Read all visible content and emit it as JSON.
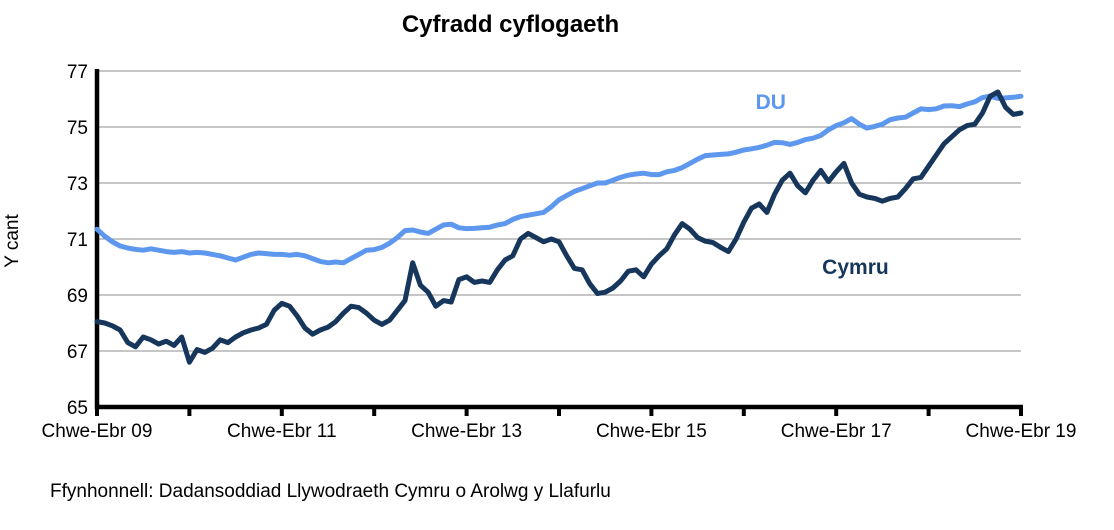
{
  "page": {
    "title": "Cyfradd cyflogaeth",
    "source_note": "Ffynhonnell: Dadansoddiad Llywodraeth Cymru o Arolwg y Llafurlu"
  },
  "chart_data": {
    "type": "line",
    "title": "Cyfradd cyflogaeth",
    "ylabel": "Y cant",
    "ylim": [
      65,
      77
    ],
    "yticks": [
      65,
      67,
      69,
      71,
      73,
      75,
      77
    ],
    "grid": "horizontal gridlines at yticks",
    "grid_color": "#8C8C8C",
    "axis_color": "#000000",
    "x_description": "Rolling 3-month labour force periods, monthly steps; month index 0 = Chwe-Ebr 09 (Feb-Apr 2009), month index 120 = Chwe-Ebr 19 (Feb-Apr 2019)",
    "x_months_range": [
      0,
      120
    ],
    "minor_tick_every_months": 12,
    "xtick_labels": [
      {
        "month": 0,
        "label": "Chwe-Ebr 09"
      },
      {
        "month": 24,
        "label": "Chwe-Ebr 11"
      },
      {
        "month": 48,
        "label": "Chwe-Ebr 13"
      },
      {
        "month": 72,
        "label": "Chwe-Ebr 15"
      },
      {
        "month": 96,
        "label": "Chwe-Ebr 17"
      },
      {
        "month": 120,
        "label": "Chwe-Ebr 19"
      }
    ],
    "legend_position": "inline labels next to lines",
    "series": [
      {
        "name": "DU",
        "color": "#5E97EE",
        "label_pos": {
          "month": 87.5,
          "value": 75.9
        },
        "values": [
          71.35,
          71.1,
          70.9,
          70.75,
          70.68,
          70.63,
          70.6,
          70.65,
          70.6,
          70.55,
          70.52,
          70.55,
          70.5,
          70.52,
          70.5,
          70.45,
          70.4,
          70.32,
          70.25,
          70.35,
          70.45,
          70.5,
          70.48,
          70.45,
          70.45,
          70.42,
          70.45,
          70.4,
          70.3,
          70.2,
          70.15,
          70.18,
          70.15,
          70.3,
          70.45,
          70.6,
          70.62,
          70.7,
          70.85,
          71.05,
          71.3,
          71.32,
          71.25,
          71.2,
          71.35,
          71.5,
          71.53,
          71.4,
          71.37,
          71.38,
          71.4,
          71.42,
          71.5,
          71.55,
          71.7,
          71.8,
          71.85,
          71.9,
          71.95,
          72.15,
          72.4,
          72.55,
          72.7,
          72.8,
          72.9,
          73.0,
          73.0,
          73.1,
          73.2,
          73.28,
          73.32,
          73.35,
          73.3,
          73.3,
          73.4,
          73.45,
          73.55,
          73.7,
          73.85,
          73.98,
          74.0,
          74.02,
          74.04,
          74.1,
          74.18,
          74.22,
          74.27,
          74.35,
          74.45,
          74.44,
          74.38,
          74.45,
          74.55,
          74.6,
          74.7,
          74.9,
          75.05,
          75.15,
          75.3,
          75.1,
          74.96,
          75.02,
          75.1,
          75.26,
          75.32,
          75.35,
          75.5,
          75.65,
          75.62,
          75.65,
          75.75,
          75.76,
          75.73,
          75.82,
          75.9,
          76.05,
          76.1,
          76.02,
          76.04,
          76.06,
          76.1
        ]
      },
      {
        "name": "Cymru",
        "color": "#16365C",
        "label_pos": {
          "month": 98.5,
          "value": 70.0
        },
        "values": [
          68.05,
          68.0,
          67.9,
          67.75,
          67.3,
          67.15,
          67.5,
          67.4,
          67.25,
          67.35,
          67.2,
          67.5,
          66.6,
          67.05,
          66.95,
          67.1,
          67.4,
          67.3,
          67.5,
          67.65,
          67.75,
          67.82,
          67.95,
          68.45,
          68.7,
          68.6,
          68.25,
          67.82,
          67.6,
          67.75,
          67.85,
          68.05,
          68.35,
          68.6,
          68.55,
          68.35,
          68.1,
          67.95,
          68.1,
          68.45,
          68.8,
          70.15,
          69.35,
          69.1,
          68.6,
          68.8,
          68.75,
          69.55,
          69.65,
          69.45,
          69.5,
          69.45,
          69.9,
          70.25,
          70.4,
          71.0,
          71.2,
          71.05,
          70.9,
          71.0,
          70.9,
          70.4,
          69.95,
          69.9,
          69.4,
          69.05,
          69.1,
          69.25,
          69.5,
          69.85,
          69.9,
          69.65,
          70.1,
          70.4,
          70.65,
          71.15,
          71.55,
          71.35,
          71.05,
          70.92,
          70.87,
          70.7,
          70.55,
          71.0,
          71.6,
          72.1,
          72.25,
          71.95,
          72.6,
          73.1,
          73.35,
          72.9,
          72.65,
          73.1,
          73.45,
          73.05,
          73.4,
          73.7,
          73.0,
          72.6,
          72.5,
          72.45,
          72.35,
          72.45,
          72.5,
          72.8,
          73.15,
          73.2,
          73.6,
          74.0,
          74.4,
          74.65,
          74.9,
          75.05,
          75.1,
          75.5,
          76.1,
          76.25,
          75.7,
          75.45,
          75.5
        ]
      }
    ]
  }
}
